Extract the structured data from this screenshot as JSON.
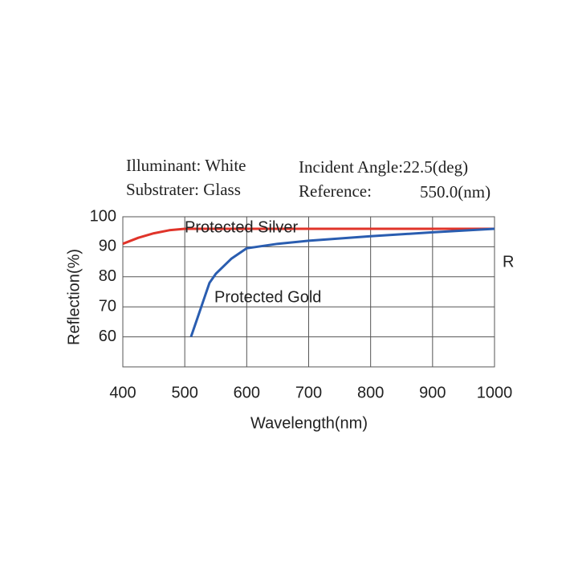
{
  "chart_data": {
    "type": "line",
    "notes": [
      "Illuminant: White",
      "Incident Angle:22.5(deg)",
      "Substrater: Glass",
      "Reference:",
      "550.0(nm)"
    ],
    "x_label": "Wavelength(nm)",
    "y_label": "Reflection(%)",
    "annotation": "R",
    "xlim": [
      400,
      1000
    ],
    "xticks": [
      400,
      500,
      600,
      700,
      800,
      900,
      1000
    ],
    "ylim": [
      50,
      100
    ],
    "yticks": [
      60,
      70,
      80,
      90,
      100
    ],
    "grid": true,
    "series": [
      {
        "name": "Protected Silver",
        "color": "#e0342a",
        "x": [
          400,
          425,
          450,
          475,
          500,
          550,
          600,
          700,
          800,
          900,
          1000
        ],
        "values": [
          91,
          93,
          94.5,
          95.5,
          96,
          96,
          96,
          96,
          96,
          96,
          96
        ]
      },
      {
        "name": "Protected Gold",
        "color": "#2a5db0",
        "x": [
          510,
          520,
          530,
          540,
          550,
          575,
          600,
          650,
          700,
          800,
          900,
          1000
        ],
        "values": [
          60,
          66,
          72,
          78,
          81,
          86,
          89.5,
          91,
          92,
          93.5,
          94.8,
          96
        ]
      }
    ]
  }
}
